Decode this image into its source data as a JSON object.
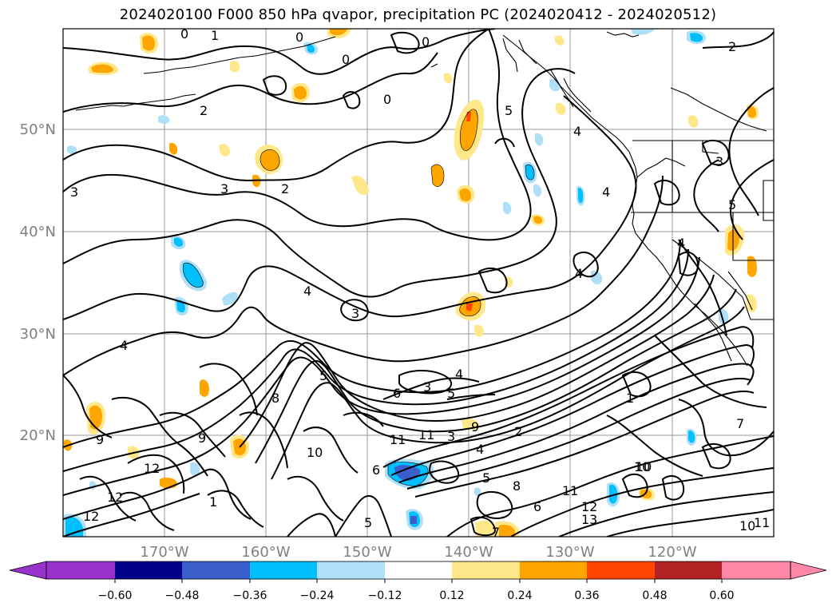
{
  "title": "2024020100 F000 850 hPa qvapor, precipitation PC (2024020412 - 2024020512)",
  "map": {
    "lat_ticks": [
      "50°N",
      "40°N",
      "30°N",
      "20°N"
    ],
    "lon_ticks": [
      "170°W",
      "160°W",
      "150°W",
      "140°W",
      "130°W",
      "120°W"
    ],
    "contour_labels": [
      "0",
      "1",
      "0",
      "0",
      "0",
      "0",
      "2",
      "2",
      "3",
      "2",
      "3",
      "4",
      "3",
      "4",
      "5",
      "3",
      "5",
      "4",
      "6",
      "8",
      "9",
      "12",
      "9",
      "10",
      "11",
      "11",
      "10",
      "9",
      "8",
      "7",
      "5",
      "6",
      "2",
      "3",
      "4",
      "5",
      "4",
      "4",
      "4",
      "3",
      "5",
      "4",
      "1",
      "7",
      "6",
      "10",
      "11",
      "12",
      "13",
      "10",
      "11",
      "1",
      "12",
      "12",
      "5"
    ]
  },
  "colorbar": {
    "labels": [
      "−0.60",
      "−0.48",
      "−0.36",
      "−0.24",
      "−0.12",
      "0.12",
      "0.24",
      "0.36",
      "0.48",
      "0.60"
    ],
    "colors": [
      "#9932cc",
      "#00008b",
      "#3a5fcd",
      "#00bfff",
      "#b0e0f8",
      "#ffffff",
      "#ffe88a",
      "#ffa500",
      "#ff4500",
      "#b22222",
      "#ff88a8"
    ]
  }
}
